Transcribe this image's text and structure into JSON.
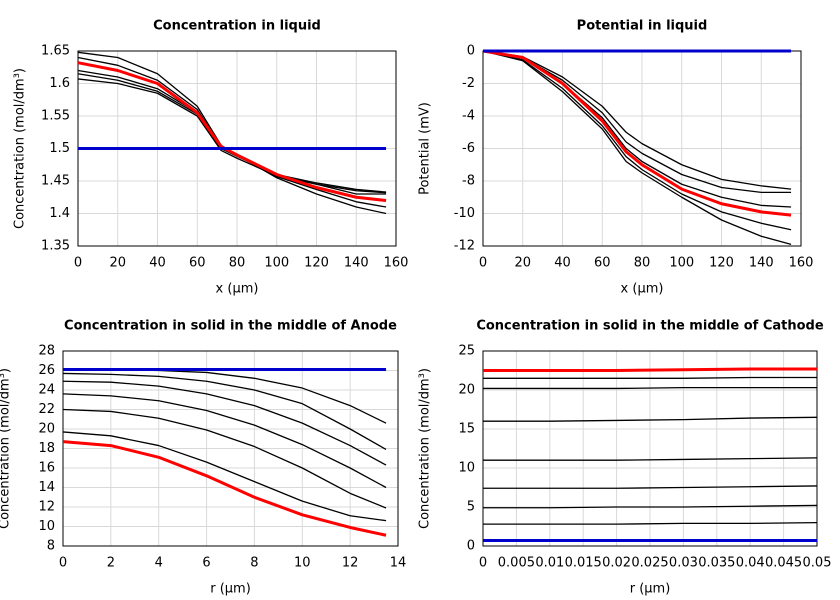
{
  "chart_data": [
    {
      "type": "line",
      "title": "Concentration in liquid",
      "x_label": "x (µm)",
      "y_label": "Concentration (mol/dm³)",
      "x": [
        0,
        20,
        40,
        60,
        72,
        80,
        100,
        120,
        140,
        155
      ],
      "xlim": [
        0,
        160
      ],
      "xticks": [
        0,
        20,
        40,
        60,
        80,
        100,
        120,
        140,
        160
      ],
      "ylim": [
        1.35,
        1.65
      ],
      "yticks": [
        1.35,
        1.4,
        1.45,
        1.5,
        1.55,
        1.6,
        1.65
      ],
      "grid": true,
      "series": [
        {
          "color": "#000000",
          "values": [
            1.648,
            1.64,
            1.615,
            1.565,
            1.505,
            1.49,
            1.455,
            1.43,
            1.41,
            1.4
          ]
        },
        {
          "color": "#000000",
          "values": [
            1.64,
            1.628,
            1.605,
            1.56,
            1.503,
            1.49,
            1.457,
            1.437,
            1.418,
            1.41
          ]
        },
        {
          "color": "#000000",
          "values": [
            1.62,
            1.61,
            1.592,
            1.555,
            1.5,
            1.49,
            1.46,
            1.445,
            1.43,
            1.43
          ]
        },
        {
          "color": "#000000",
          "values": [
            1.615,
            1.605,
            1.588,
            1.553,
            1.5,
            1.488,
            1.46,
            1.447,
            1.437,
            1.433
          ]
        },
        {
          "color": "#000000",
          "values": [
            1.607,
            1.6,
            1.585,
            1.55,
            1.497,
            1.485,
            1.458,
            1.445,
            1.435,
            1.432
          ]
        },
        {
          "color": "#ff0000",
          "values": [
            1.632,
            1.62,
            1.6,
            1.555,
            1.503,
            1.49,
            1.46,
            1.44,
            1.425,
            1.42
          ]
        },
        {
          "color": "#0000cc",
          "values": [
            1.5,
            1.5,
            1.5,
            1.5,
            1.5,
            1.5,
            1.5,
            1.5,
            1.5,
            1.5
          ]
        }
      ]
    },
    {
      "type": "line",
      "title": "Potential in liquid",
      "x_label": "x (µm)",
      "y_label": "Potential (mV)",
      "x": [
        0,
        20,
        40,
        60,
        72,
        80,
        100,
        120,
        140,
        155
      ],
      "xlim": [
        0,
        160
      ],
      "xticks": [
        0,
        20,
        40,
        60,
        80,
        100,
        120,
        140,
        160
      ],
      "ylim": [
        -12,
        0
      ],
      "yticks": [
        -12,
        -10,
        -8,
        -6,
        -4,
        -2,
        0
      ],
      "grid": true,
      "series": [
        {
          "color": "#000000",
          "values": [
            0,
            -0.6,
            -2.5,
            -4.8,
            -6.8,
            -7.5,
            -9.0,
            -10.4,
            -11.4,
            -11.9
          ]
        },
        {
          "color": "#000000",
          "values": [
            0,
            -0.55,
            -2.3,
            -4.6,
            -6.5,
            -7.3,
            -8.8,
            -9.9,
            -10.6,
            -11.0
          ]
        },
        {
          "color": "#000000",
          "values": [
            0,
            -0.45,
            -2.0,
            -4.1,
            -6.0,
            -6.8,
            -8.2,
            -9.0,
            -9.5,
            -9.6
          ]
        },
        {
          "color": "#000000",
          "values": [
            0,
            -0.4,
            -1.8,
            -3.8,
            -5.6,
            -6.3,
            -7.6,
            -8.4,
            -8.7,
            -8.7
          ]
        },
        {
          "color": "#000000",
          "values": [
            0,
            -0.35,
            -1.6,
            -3.4,
            -5.0,
            -5.7,
            -7.0,
            -7.9,
            -8.3,
            -8.5
          ]
        },
        {
          "color": "#ff0000",
          "values": [
            0,
            -0.4,
            -2.0,
            -4.3,
            -6.2,
            -7.0,
            -8.5,
            -9.4,
            -9.9,
            -10.1
          ]
        },
        {
          "color": "#0000cc",
          "values": [
            0,
            0,
            0,
            0,
            0,
            0,
            0,
            0,
            0,
            0
          ]
        }
      ]
    },
    {
      "type": "line",
      "title": "Concentration in solid in the middle of Anode",
      "x_label": "r (µm)",
      "y_label": "Concentration (mol/dm³)",
      "x": [
        0,
        2,
        4,
        6,
        8,
        10,
        12,
        13.5
      ],
      "xlim": [
        0,
        14
      ],
      "xticks": [
        0,
        2,
        4,
        6,
        8,
        10,
        12,
        14
      ],
      "ylim": [
        8,
        28
      ],
      "yticks": [
        8,
        10,
        12,
        14,
        16,
        18,
        20,
        22,
        24,
        26,
        28
      ],
      "grid": true,
      "series": [
        {
          "color": "#000000",
          "values": [
            26.1,
            26.1,
            26.0,
            25.8,
            25.2,
            24.2,
            22.4,
            20.6
          ]
        },
        {
          "color": "#000000",
          "values": [
            25.7,
            25.6,
            25.4,
            24.9,
            24.0,
            22.6,
            20.0,
            17.9
          ]
        },
        {
          "color": "#000000",
          "values": [
            24.9,
            24.8,
            24.4,
            23.6,
            22.4,
            20.6,
            18.3,
            16.3
          ]
        },
        {
          "color": "#000000",
          "values": [
            23.6,
            23.4,
            22.9,
            21.9,
            20.4,
            18.4,
            16.0,
            14.0
          ]
        },
        {
          "color": "#000000",
          "values": [
            22.0,
            21.8,
            21.1,
            19.9,
            18.2,
            16.0,
            13.4,
            11.9
          ]
        },
        {
          "color": "#000000",
          "values": [
            19.7,
            19.3,
            18.3,
            16.6,
            14.6,
            12.6,
            11.1,
            10.6
          ]
        },
        {
          "color": "#ff0000",
          "values": [
            18.7,
            18.3,
            17.1,
            15.2,
            13.0,
            11.2,
            9.9,
            9.1
          ]
        },
        {
          "color": "#0000cc",
          "values": [
            26.1,
            26.1,
            26.1,
            26.1,
            26.1,
            26.1,
            26.1,
            26.1
          ]
        }
      ]
    },
    {
      "type": "line",
      "title": "Concentration in solid in the middle of Cathode",
      "x_label": "r (µm)",
      "y_label": "Concentration (mol/dm³)",
      "x": [
        0,
        0.01,
        0.02,
        0.03,
        0.04,
        0.05
      ],
      "xlim": [
        0,
        0.05
      ],
      "xticks": [
        0,
        0.005,
        0.01,
        0.015,
        0.02,
        0.025,
        0.03,
        0.035,
        0.04,
        0.045,
        0.05
      ],
      "ylim": [
        0,
        25
      ],
      "yticks": [
        0,
        5,
        10,
        15,
        20,
        25
      ],
      "grid": true,
      "series": [
        {
          "color": "#000000",
          "values": [
            21.5,
            21.5,
            21.5,
            21.5,
            21.6,
            21.6
          ]
        },
        {
          "color": "#000000",
          "values": [
            20.2,
            20.2,
            20.2,
            20.3,
            20.3,
            20.3
          ]
        },
        {
          "color": "#000000",
          "values": [
            16.0,
            16.0,
            16.1,
            16.2,
            16.4,
            16.5
          ]
        },
        {
          "color": "#000000",
          "values": [
            11.0,
            11.0,
            11.0,
            11.1,
            11.2,
            11.3
          ]
        },
        {
          "color": "#000000",
          "values": [
            7.4,
            7.4,
            7.4,
            7.5,
            7.6,
            7.7
          ]
        },
        {
          "color": "#000000",
          "values": [
            4.9,
            4.9,
            5.0,
            5.0,
            5.1,
            5.2
          ]
        },
        {
          "color": "#000000",
          "values": [
            2.8,
            2.8,
            2.8,
            2.9,
            2.9,
            3.0
          ]
        },
        {
          "color": "#ff0000",
          "values": [
            22.5,
            22.5,
            22.5,
            22.6,
            22.7,
            22.7
          ]
        },
        {
          "color": "#0000cc",
          "values": [
            0.7,
            0.7,
            0.7,
            0.7,
            0.7,
            0.7
          ]
        }
      ]
    }
  ]
}
